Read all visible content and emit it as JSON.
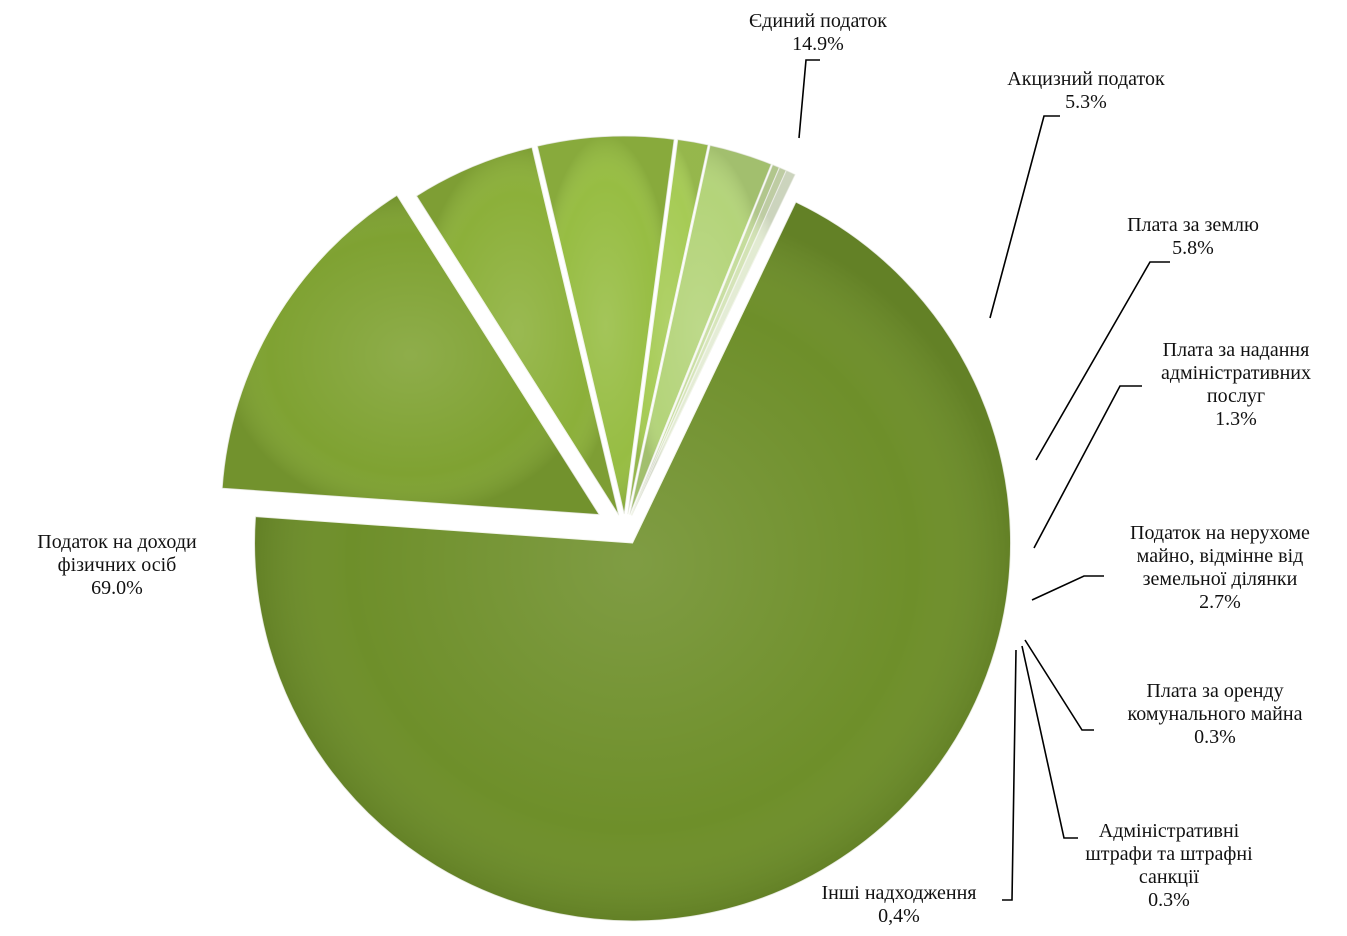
{
  "chart_data": {
    "type": "pie",
    "title": "",
    "legend": "none",
    "slices": [
      {
        "name_lines": [
          "Єдиний податок"
        ],
        "value": 14.9,
        "label": "14.9%",
        "color": "#7fa232"
      },
      {
        "name_lines": [
          "Акцизний податок"
        ],
        "value": 5.3,
        "label": "5.3%",
        "color": "#8cb03a"
      },
      {
        "name_lines": [
          "Плата за землю"
        ],
        "value": 5.8,
        "label": "5.8%",
        "color": "#97bd43"
      },
      {
        "name_lines": [
          "Плата за надання",
          "адміністративних",
          "послуг"
        ],
        "value": 1.3,
        "label": "1.3%",
        "color": "#a6cb55"
      },
      {
        "name_lines": [
          "Податок на нерухоме",
          "майно, відмінне від",
          "земельної ділянки"
        ],
        "value": 2.7,
        "label": "2.7%",
        "color": "#b4d47a"
      },
      {
        "name_lines": [
          "Плата за оренду",
          "комунального майна"
        ],
        "value": 0.3,
        "label": "0.3%",
        "color": "#c5dc9c"
      },
      {
        "name_lines": [
          "Адміністративні",
          "штрафи та штрафні",
          "санкції"
        ],
        "value": 0.3,
        "label": "0.3%",
        "color": "#d3e3b5"
      },
      {
        "name_lines": [
          "Інші надходження"
        ],
        "value": 0.4,
        "label": "0,4%",
        "color": "#e2ebd2"
      },
      {
        "name_lines": [
          "Податок на доходи",
          "фізичних осіб"
        ],
        "value": 69.0,
        "label": "69.0%",
        "color": "#6e8f2a"
      }
    ]
  }
}
